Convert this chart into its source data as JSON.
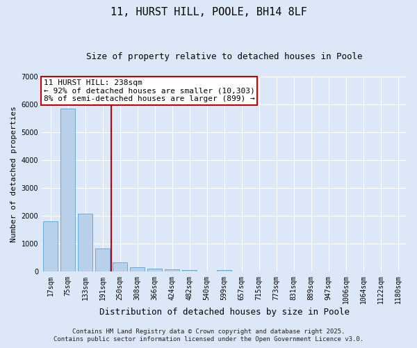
{
  "title": "11, HURST HILL, POOLE, BH14 8LF",
  "subtitle": "Size of property relative to detached houses in Poole",
  "xlabel": "Distribution of detached houses by size in Poole",
  "ylabel": "Number of detached properties",
  "categories": [
    "17sqm",
    "75sqm",
    "133sqm",
    "191sqm",
    "250sqm",
    "308sqm",
    "366sqm",
    "424sqm",
    "482sqm",
    "540sqm",
    "599sqm",
    "657sqm",
    "715sqm",
    "773sqm",
    "831sqm",
    "889sqm",
    "947sqm",
    "1006sqm",
    "1064sqm",
    "1122sqm",
    "1180sqm"
  ],
  "values": [
    1800,
    5850,
    2080,
    840,
    330,
    170,
    100,
    80,
    60,
    0,
    60,
    0,
    0,
    0,
    0,
    0,
    0,
    0,
    0,
    0,
    0
  ],
  "bar_color": "#b8d0ea",
  "bar_edge_color": "#6aaad4",
  "vline_color": "#cc0000",
  "annotation_title": "11 HURST HILL: 238sqm",
  "annotation_line1": "← 92% of detached houses are smaller (10,303)",
  "annotation_line2": "8% of semi-detached houses are larger (899) →",
  "annotation_box_color": "#ffffff",
  "annotation_box_edge_color": "#cc0000",
  "footer1": "Contains HM Land Registry data © Crown copyright and database right 2025.",
  "footer2": "Contains public sector information licensed under the Open Government Licence v3.0.",
  "background_color": "#dce8f8",
  "ylim": [
    0,
    7000
  ],
  "yticks": [
    0,
    1000,
    2000,
    3000,
    4000,
    5000,
    6000,
    7000
  ],
  "grid_color": "#ffffff",
  "title_fontsize": 11,
  "subtitle_fontsize": 9,
  "xlabel_fontsize": 9,
  "ylabel_fontsize": 8,
  "tick_fontsize": 7,
  "annot_fontsize": 8,
  "footer_fontsize": 6.5
}
